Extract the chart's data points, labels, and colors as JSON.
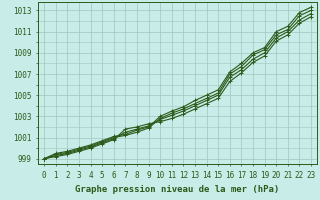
{
  "x": [
    0,
    1,
    2,
    3,
    4,
    5,
    6,
    7,
    8,
    9,
    10,
    11,
    12,
    13,
    14,
    15,
    16,
    17,
    18,
    19,
    20,
    21,
    22,
    23
  ],
  "line1": [
    999.0,
    999.5,
    999.7,
    1000.0,
    1000.3,
    1000.7,
    1001.1,
    1001.3,
    1001.7,
    1002.0,
    1003.0,
    1003.5,
    1003.9,
    1004.5,
    1005.0,
    1005.5,
    1007.2,
    1008.0,
    1009.0,
    1009.5,
    1011.0,
    1011.5,
    1012.8,
    1013.3
  ],
  "line2": [
    999.0,
    999.4,
    999.6,
    999.9,
    1000.2,
    1000.6,
    1001.0,
    1001.2,
    1001.5,
    1001.9,
    1002.8,
    1003.3,
    1003.7,
    1004.2,
    1004.7,
    1005.2,
    1007.0,
    1007.7,
    1008.8,
    1009.3,
    1010.7,
    1011.2,
    1012.5,
    1013.0
  ],
  "line3": [
    999.0,
    999.3,
    999.5,
    999.8,
    1000.1,
    1000.5,
    1000.9,
    1001.5,
    1001.8,
    1002.1,
    1002.7,
    1003.1,
    1003.5,
    1004.0,
    1004.5,
    1005.0,
    1006.7,
    1007.4,
    1008.4,
    1009.0,
    1010.4,
    1011.0,
    1012.1,
    1012.7
  ],
  "line4": [
    999.0,
    999.2,
    999.4,
    999.7,
    1000.0,
    1000.4,
    1000.8,
    1001.8,
    1002.0,
    1002.3,
    1002.5,
    1002.8,
    1003.2,
    1003.7,
    1004.2,
    1004.7,
    1006.3,
    1007.1,
    1008.1,
    1008.7,
    1010.1,
    1010.7,
    1011.8,
    1012.4
  ],
  "line_color": "#2d5a1b",
  "bg_color": "#c8ece8",
  "grid_color": "#9ec8be",
  "xlabel": "Graphe pression niveau de la mer (hPa)",
  "ylim": [
    998.5,
    1013.8
  ],
  "yticks": [
    999,
    1001,
    1003,
    1005,
    1007,
    1009,
    1011,
    1013
  ],
  "xticks": [
    0,
    1,
    2,
    3,
    4,
    5,
    6,
    7,
    8,
    9,
    10,
    11,
    12,
    13,
    14,
    15,
    16,
    17,
    18,
    19,
    20,
    21,
    22,
    23
  ],
  "xlabel_fontsize": 6.5,
  "tick_fontsize": 5.5,
  "markersize": 3.5,
  "linewidth": 0.8
}
